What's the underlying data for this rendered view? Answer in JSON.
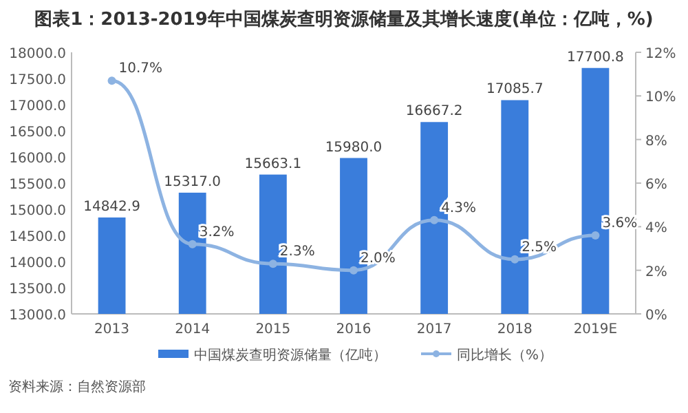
{
  "chart_data": {
    "type": "bar",
    "title": "图表1：2013-2019年中国煤炭查明资源储量及其增长速度(单位：亿吨，%)",
    "categories": [
      "2013",
      "2014",
      "2015",
      "2016",
      "2017",
      "2018",
      "2019E"
    ],
    "series": [
      {
        "name": "中国煤炭查明资源储量（亿吨）",
        "color": "#3a7ddb",
        "values": [
          14842.9,
          15317.0,
          15663.1,
          15980.0,
          16667.2,
          17085.7,
          17700.8
        ],
        "value_labels": [
          "14842.9",
          "15317.0",
          "15663.1",
          "15980.0",
          "16667.2",
          "17085.7",
          "17700.8"
        ]
      },
      {
        "name": "同比增长（%）",
        "type": "line",
        "axis": "y2",
        "color": "#8db3e2",
        "marker": "circle",
        "values": [
          10.7,
          3.2,
          2.3,
          2.0,
          4.3,
          2.5,
          3.6
        ],
        "value_labels": [
          "10.7%",
          "3.2%",
          "2.3%",
          "2.0%",
          "4.3%",
          "2.5%",
          "3.6%"
        ]
      }
    ],
    "ylim": [
      13000,
      18000
    ],
    "yticks": [
      {
        "value": 13000,
        "label": "13000.0"
      },
      {
        "value": 13500,
        "label": "13500.0"
      },
      {
        "value": 14000,
        "label": "14000.0"
      },
      {
        "value": 14500,
        "label": "14500.0"
      },
      {
        "value": 15000,
        "label": "15000.0"
      },
      {
        "value": 15500,
        "label": "15500.0"
      },
      {
        "value": 16000,
        "label": "16000.0"
      },
      {
        "value": 16500,
        "label": "16500.0"
      },
      {
        "value": 17000,
        "label": "17000.0"
      },
      {
        "value": 17500,
        "label": "17500.0"
      },
      {
        "value": 18000,
        "label": "18000.0"
      }
    ],
    "y2lim": [
      0,
      12
    ],
    "y2ticks": [
      {
        "value": 0,
        "label": "0%"
      },
      {
        "value": 2,
        "label": "2%"
      },
      {
        "value": 4,
        "label": "4%"
      },
      {
        "value": 6,
        "label": "6%"
      },
      {
        "value": 8,
        "label": "8%"
      },
      {
        "value": 10,
        "label": "10%"
      },
      {
        "value": 12,
        "label": "12%"
      }
    ],
    "grid": false,
    "legend": "bottom",
    "annotations": [
      "资料来源：自然资源部"
    ]
  }
}
